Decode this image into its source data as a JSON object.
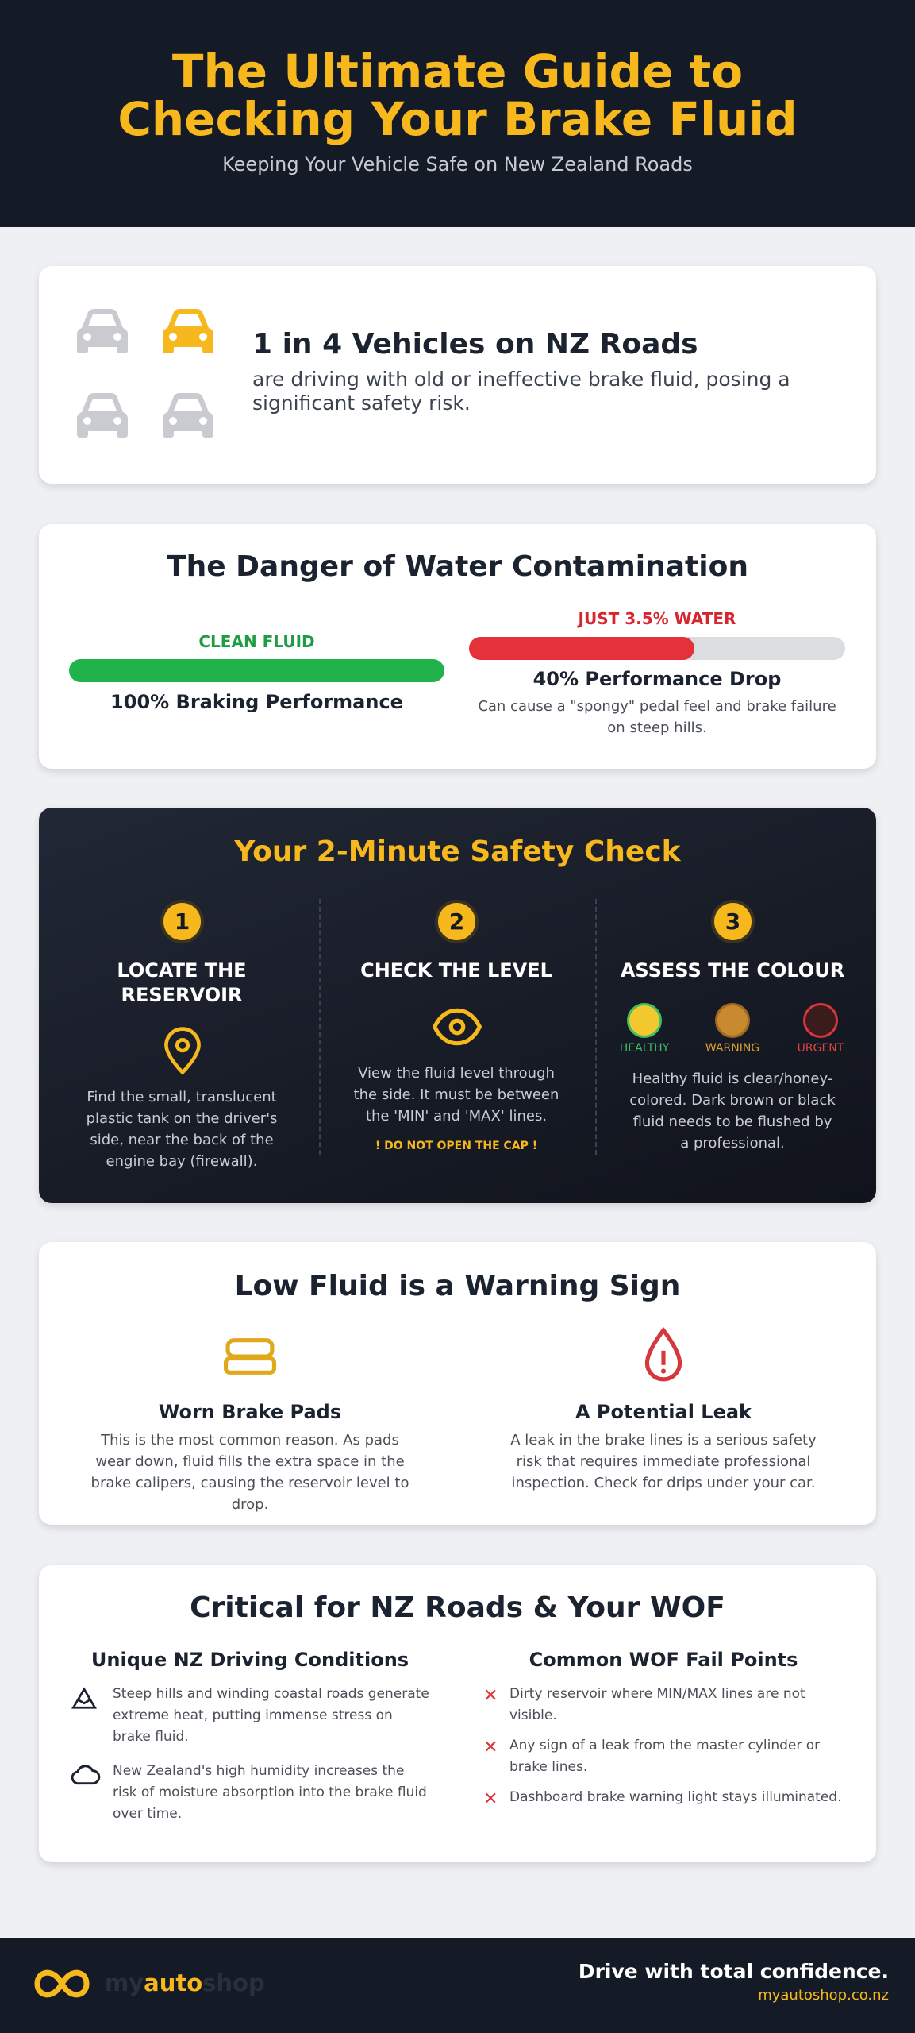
{
  "header": {
    "title_line1": "The Ultimate Guide to",
    "title_line2": "Checking Your Brake Fluid",
    "subtitle": "Keeping Your Vehicle Safe on New Zealand Roads"
  },
  "stat": {
    "headline": "1 in 4 Vehicles on NZ Roads",
    "text": "are driving with old or ineffective brake fluid, posing a significant safety risk."
  },
  "contamination": {
    "title": "The Danger of Water Contamination",
    "clean": {
      "label": "CLEAN FLUID",
      "result": "100% Braking Performance"
    },
    "water": {
      "label": "JUST 3.5% WATER",
      "result": "40% Performance Drop",
      "note": "Can cause a \"spongy\" pedal feel and brake failure on steep hills."
    }
  },
  "check": {
    "title": "Your 2-Minute Safety Check",
    "steps": [
      {
        "number": "1",
        "title": "LOCATE THE RESERVOIR",
        "text": "Find the small, translucent plastic tank on the driver's side, near the back of the engine bay (firewall)."
      },
      {
        "number": "2",
        "title": "CHECK THE LEVEL",
        "text": "View the fluid level through the side. It must be between the 'MIN' and 'MAX' lines.",
        "warning": "! DO NOT OPEN THE CAP !"
      },
      {
        "number": "3",
        "title": "ASSESS THE COLOUR",
        "swatches": [
          "HEALTHY",
          "WARNING",
          "URGENT"
        ],
        "text": "Healthy fluid is clear/honey-colored. Dark brown or black fluid needs to be flushed by a professional."
      }
    ]
  },
  "warning": {
    "title": "Low Fluid is a Warning Sign",
    "items": [
      {
        "title": "Worn Brake Pads",
        "text": "This is the most common reason. As pads wear down, fluid fills the extra space in the brake calipers, causing the reservoir level to drop."
      },
      {
        "title": "A Potential Leak",
        "text": "A leak in the brake lines is a serious safety risk that requires immediate professional inspection. Check for drips under your car."
      }
    ]
  },
  "wof": {
    "title": "Critical for NZ Roads & Your WOF",
    "columns": [
      {
        "title": "Unique NZ Driving Conditions",
        "items": [
          "Steep hills and winding coastal roads generate extreme heat, putting immense stress on brake fluid.",
          "New Zealand's high humidity increases the risk of moisture absorption into the brake fluid over time."
        ]
      },
      {
        "title": "Common WOF Fail Points",
        "items": [
          "Dirty reservoir where MIN/MAX lines are not visible.",
          "Any sign of a leak from the master cylinder or brake lines.",
          "Dashboard brake warning light stays illuminated."
        ]
      }
    ]
  },
  "footer": {
    "logo": [
      "my",
      "auto",
      "shop"
    ],
    "tagline": "Drive with total confidence.",
    "url": "myautoshop.co.nz"
  }
}
